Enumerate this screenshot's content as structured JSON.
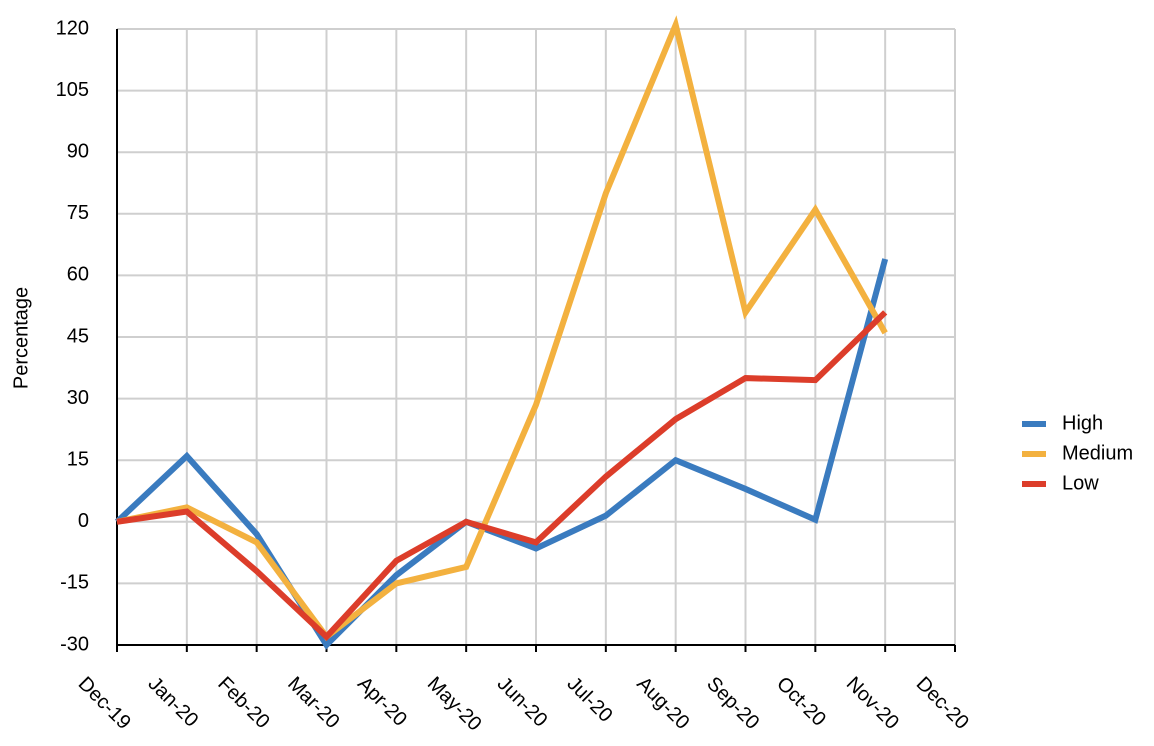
{
  "chart_data": {
    "type": "line",
    "y_label": "Percentage",
    "categories": [
      "Dec-19",
      "Jan-20",
      "Feb-20",
      "Mar-20",
      "Apr-20",
      "May-20",
      "Jun-20",
      "Jul-20",
      "Aug-20",
      "Sep-20",
      "Oct-20",
      "Nov-20",
      "Dec-20"
    ],
    "series": [
      {
        "name": "High",
        "color": "#3a7bbf",
        "values": [
          0,
          16,
          -3,
          -30,
          -13,
          0,
          -6.5,
          1.5,
          15,
          8,
          0.5,
          64,
          null
        ]
      },
      {
        "name": "Medium",
        "color": "#f3b13f",
        "values": [
          0,
          3.5,
          -5,
          -28,
          -15,
          -11,
          28.5,
          80,
          121,
          51,
          76,
          46,
          null
        ]
      },
      {
        "name": "Low",
        "color": "#dc3d2a",
        "values": [
          0,
          2.5,
          -12,
          -28,
          -9.5,
          0,
          -5,
          11,
          25,
          35,
          34.5,
          51,
          null
        ]
      }
    ],
    "ylim": [
      -30,
      120
    ],
    "yticks": [
      -30,
      -15,
      0,
      15,
      30,
      45,
      60,
      75,
      90,
      105,
      120
    ],
    "grid": true,
    "legend": "right"
  }
}
